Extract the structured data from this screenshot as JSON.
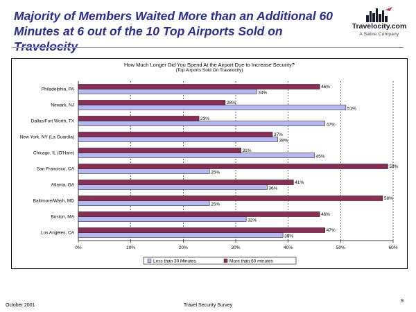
{
  "slide": {
    "title": "Majority of Members Waited More than an Additional 60 Minutes at 6 out of the 10 Top Airports Sold on Travelocity"
  },
  "logo": {
    "brand": "Travelocity.com",
    "tagline": "A Sabre Company"
  },
  "footer": {
    "date": "October 2001",
    "survey": "Travel Security Survey",
    "page": "9"
  },
  "colors": {
    "title": "#2b2b8f",
    "series_less": "#b8b8f0",
    "series_more": "#8a2e55"
  },
  "chart_data": {
    "type": "bar",
    "orientation": "horizontal",
    "title": "How Much Longer Did You Spend At the Airport Due to Increase Security?",
    "subtitle": "(Top Airports Sold On Travelocity)",
    "categories": [
      "Philadelphia, PA",
      "Newark, NJ",
      "Dallas/Fort Worth, TX",
      "New York, NY (La Guardia)",
      "Chicago, IL (O'Hare)",
      "San Francisco, CA",
      "Atlanta, GA",
      "Baltimore/Wash, MD",
      "Boston, MA",
      "Los Angeles, CA"
    ],
    "series": [
      {
        "name": "Less than 30 Minutes",
        "values": [
          34,
          51,
          47,
          38,
          45,
          25,
          36,
          25,
          32,
          39
        ]
      },
      {
        "name": "More than 60 minutes",
        "values": [
          46,
          28,
          23,
          37,
          31,
          59,
          41,
          58,
          46,
          47
        ]
      }
    ],
    "value_labels": {
      "Less than 30 Minutes": [
        "34%",
        "51%",
        "47%",
        "38%",
        "45%",
        "25%",
        "36%",
        "25%",
        "32%",
        "39%"
      ],
      "More than 60 minutes": [
        "46%",
        "28%",
        "23%",
        "37%",
        "31%",
        "59%",
        "41%",
        "58%",
        "46%",
        "47%"
      ]
    },
    "x_ticks": [
      "0%",
      "10%",
      "20%",
      "30%",
      "40%",
      "50%",
      "60%"
    ],
    "xlim": [
      0,
      60
    ],
    "grid": true,
    "legend_position": "bottom"
  }
}
